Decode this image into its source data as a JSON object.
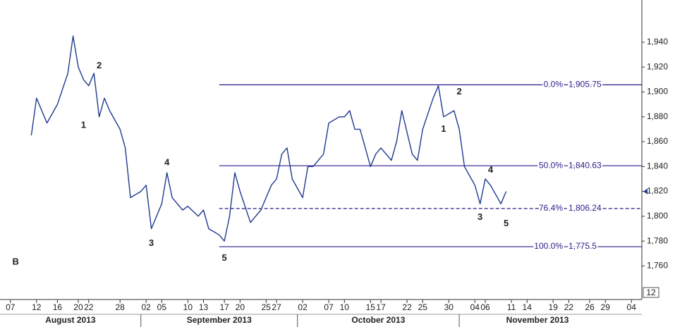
{
  "chart_data": {
    "type": "line",
    "color": "#1f3a8f",
    "x": [
      "2013-08-11",
      "2013-08-12",
      "2013-08-14",
      "2013-08-16",
      "2013-08-18",
      "2013-08-19",
      "2013-08-20",
      "2013-08-21",
      "2013-08-22",
      "2013-08-23",
      "2013-08-24",
      "2013-08-25",
      "2013-08-26",
      "2013-08-28",
      "2013-08-29",
      "2013-08-30",
      "2013-09-01",
      "2013-09-02",
      "2013-09-03",
      "2013-09-05",
      "2013-09-06",
      "2013-09-07",
      "2013-09-09",
      "2013-09-10",
      "2013-09-12",
      "2013-09-13",
      "2013-09-14",
      "2013-09-16",
      "2013-09-17",
      "2013-09-18",
      "2013-09-19",
      "2013-09-20",
      "2013-09-22",
      "2013-09-23",
      "2013-09-24",
      "2013-09-26",
      "2013-09-27",
      "2013-09-28",
      "2013-09-29",
      "2013-09-30",
      "2013-10-02",
      "2013-10-03",
      "2013-10-04",
      "2013-10-06",
      "2013-10-07",
      "2013-10-09",
      "2013-10-10",
      "2013-10-11",
      "2013-10-12",
      "2013-10-13",
      "2013-10-15",
      "2013-10-16",
      "2013-10-17",
      "2013-10-19",
      "2013-10-20",
      "2013-10-21",
      "2013-10-23",
      "2013-10-24",
      "2013-10-25",
      "2013-10-27",
      "2013-10-28",
      "2013-10-29",
      "2013-10-31",
      "2013-11-01",
      "2013-11-02",
      "2013-11-04",
      "2013-11-05",
      "2013-11-06",
      "2013-11-07",
      "2013-11-09",
      "2013-11-10"
    ],
    "values": [
      1865,
      1895,
      1875,
      1890,
      1915,
      1945,
      1920,
      1910,
      1905,
      1915,
      1880,
      1895,
      1885,
      1870,
      1855,
      1815,
      1820,
      1825,
      1790,
      1810,
      1835,
      1815,
      1805,
      1808,
      1800,
      1805,
      1790,
      1785,
      1780,
      1800,
      1835,
      1820,
      1795,
      1800,
      1805,
      1825,
      1830,
      1850,
      1855,
      1830,
      1815,
      1840,
      1840,
      1850,
      1875,
      1880,
      1880,
      1885,
      1870,
      1870,
      1840,
      1850,
      1855,
      1845,
      1860,
      1885,
      1850,
      1845,
      1870,
      1895,
      1905,
      1880,
      1885,
      1870,
      1840,
      1825,
      1810,
      1830,
      1825,
      1810,
      1820
    ],
    "xlim": [
      "2013-08-05",
      "2013-12-06"
    ],
    "xticks": [
      {
        "value": "2013-08-07",
        "label": "07"
      },
      {
        "value": "2013-08-12",
        "label": "12"
      },
      {
        "value": "2013-08-16",
        "label": "16"
      },
      {
        "value": "2013-08-20",
        "label": "20"
      },
      {
        "value": "2013-08-22",
        "label": "22"
      },
      {
        "value": "2013-08-28",
        "label": "28"
      },
      {
        "value": "2013-09-02",
        "label": "02"
      },
      {
        "value": "2013-09-05",
        "label": "05"
      },
      {
        "value": "2013-09-10",
        "label": "10"
      },
      {
        "value": "2013-09-13",
        "label": "13"
      },
      {
        "value": "2013-09-17",
        "label": "17"
      },
      {
        "value": "2013-09-20",
        "label": "20"
      },
      {
        "value": "2013-09-25",
        "label": "25"
      },
      {
        "value": "2013-09-27",
        "label": "27"
      },
      {
        "value": "2013-10-02",
        "label": "02"
      },
      {
        "value": "2013-10-07",
        "label": "07"
      },
      {
        "value": "2013-10-10",
        "label": "10"
      },
      {
        "value": "2013-10-15",
        "label": "15"
      },
      {
        "value": "2013-10-17",
        "label": "17"
      },
      {
        "value": "2013-10-22",
        "label": "22"
      },
      {
        "value": "2013-10-25",
        "label": "25"
      },
      {
        "value": "2013-10-30",
        "label": "30"
      },
      {
        "value": "2013-11-04",
        "label": "04"
      },
      {
        "value": "2013-11-06",
        "label": "06"
      },
      {
        "value": "2013-11-11",
        "label": "11"
      },
      {
        "value": "2013-11-14",
        "label": "14"
      },
      {
        "value": "2013-11-19",
        "label": "19"
      },
      {
        "value": "2013-11-22",
        "label": "22"
      },
      {
        "value": "2013-11-26",
        "label": "26"
      },
      {
        "value": "2013-11-29",
        "label": "29"
      },
      {
        "value": "2013-12-04",
        "label": "04"
      }
    ],
    "months": [
      {
        "value": "2013-08",
        "label": "August 2013"
      },
      {
        "value": "2013-09",
        "label": "September 2013"
      },
      {
        "value": "2013-10",
        "label": "October 2013"
      },
      {
        "value": "2013-11",
        "label": "November 2013"
      }
    ],
    "ylim": [
      1733,
      1974
    ],
    "yticks": [
      {
        "value": 1760,
        "label": "1,760"
      },
      {
        "value": 1780,
        "label": "1,780"
      },
      {
        "value": 1800,
        "label": "1,800"
      },
      {
        "value": 1820,
        "label": "1,820"
      },
      {
        "value": 1840,
        "label": "1,840"
      },
      {
        "value": 1860,
        "label": "1,860"
      },
      {
        "value": 1880,
        "label": "1,880"
      },
      {
        "value": 1900,
        "label": "1,900"
      },
      {
        "value": 1920,
        "label": "1,920"
      },
      {
        "value": 1940,
        "label": "1,940"
      }
    ],
    "grid": false,
    "axis_badge": "12",
    "fib_color": "#2e1a87",
    "fib_levels": [
      {
        "label": "0.0%",
        "value": 1905.75,
        "value_label": "1,905.75",
        "start": "2013-09-16",
        "dashed": false
      },
      {
        "label": "50.0%",
        "value": 1840.63,
        "value_label": "1,840.63",
        "start": "2013-09-16",
        "dashed": false
      },
      {
        "label": "76.4%",
        "value": 1806.24,
        "value_label": "1,806.24",
        "start": "2013-09-16",
        "dashed": true
      },
      {
        "label": "100.0%",
        "value": 1775.5,
        "value_label": "1,775.5",
        "start": "2013-09-16",
        "dashed": false
      }
    ],
    "annotations": [
      {
        "text": "B",
        "x": "2013-08-08",
        "y": 1763
      },
      {
        "text": "2",
        "x": "2013-08-24",
        "y": 1921
      },
      {
        "text": "1",
        "x": "2013-08-21",
        "y": 1873
      },
      {
        "text": "3",
        "x": "2013-09-03",
        "y": 1778
      },
      {
        "text": "4",
        "x": "2013-09-06",
        "y": 1843
      },
      {
        "text": "5",
        "x": "2013-09-17",
        "y": 1766
      },
      {
        "text": "1",
        "x": "2013-10-29",
        "y": 1870
      },
      {
        "text": "2",
        "x": "2013-11-01",
        "y": 1900
      },
      {
        "text": "3",
        "x": "2013-11-05",
        "y": 1799
      },
      {
        "text": "4",
        "x": "2013-11-07",
        "y": 1837
      },
      {
        "text": "5",
        "x": "2013-11-10",
        "y": 1794
      }
    ]
  }
}
